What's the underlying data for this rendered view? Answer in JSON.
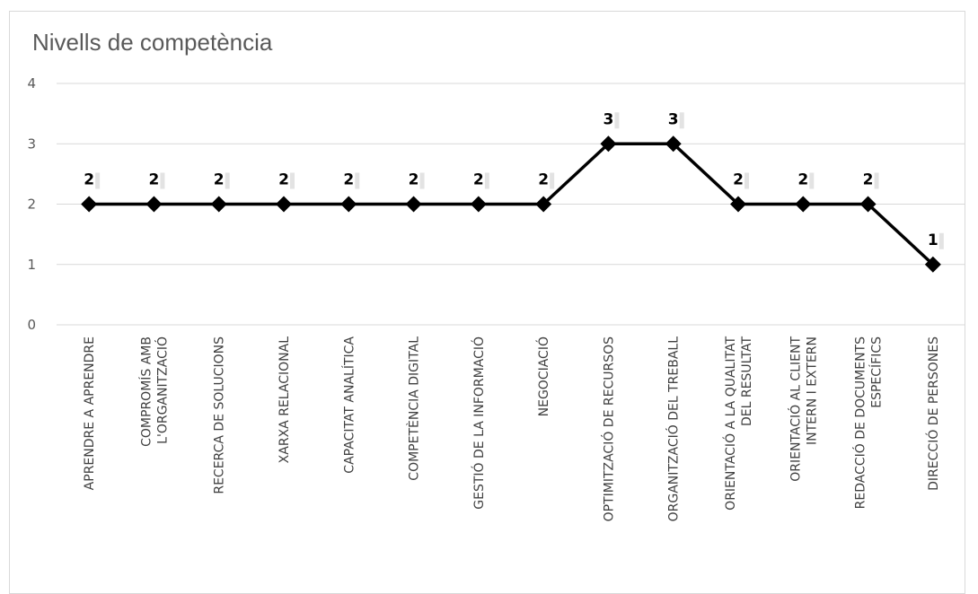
{
  "chart_data": {
    "type": "line",
    "title": "Nivells de competència",
    "ylim": [
      0,
      4
    ],
    "yticks": [
      "0",
      "1",
      "2",
      "3",
      "4"
    ],
    "grid": true,
    "categories": [
      [
        "APRENDRE A APRENDRE"
      ],
      [
        "COMPROMÍS AMB",
        "L'ORGANITZACIÓ"
      ],
      [
        "RECERCA DE SOLUCIONS"
      ],
      [
        "XARXA RELACIONAL"
      ],
      [
        "CAPACITAT ANALÍTICA"
      ],
      [
        "COMPETÈNCIA DIGITAL"
      ],
      [
        "GESTIÓ DE LA INFORMACIÓ"
      ],
      [
        "NEGOCIACIÓ"
      ],
      [
        "OPTIMITZACIÓ DE RECURSOS"
      ],
      [
        "ORGANITZACIÓ DEL TREBALL"
      ],
      [
        "ORIENTACIÓ A LA QUALITAT",
        "DEL RESULTAT"
      ],
      [
        "ORIENTACIÓ AL CLIENT",
        "INTERN I EXTERN"
      ],
      [
        "REDACCIÓ DE DOCUMENTS",
        "ESPECÍFICS"
      ],
      [
        "DIRECCIÓ DE PERSONES"
      ]
    ],
    "series": [
      {
        "values": [
          2,
          2,
          2,
          2,
          2,
          2,
          2,
          2,
          3,
          3,
          2,
          2,
          2,
          1
        ]
      }
    ],
    "data_labels": [
      "2",
      "2",
      "2",
      "2",
      "2",
      "2",
      "2",
      "2",
      "3",
      "3",
      "2",
      "2",
      "2",
      "1"
    ],
    "line_color": "#000000",
    "grid_color": "#d9d9d9",
    "axis_text_color": "#595959"
  }
}
